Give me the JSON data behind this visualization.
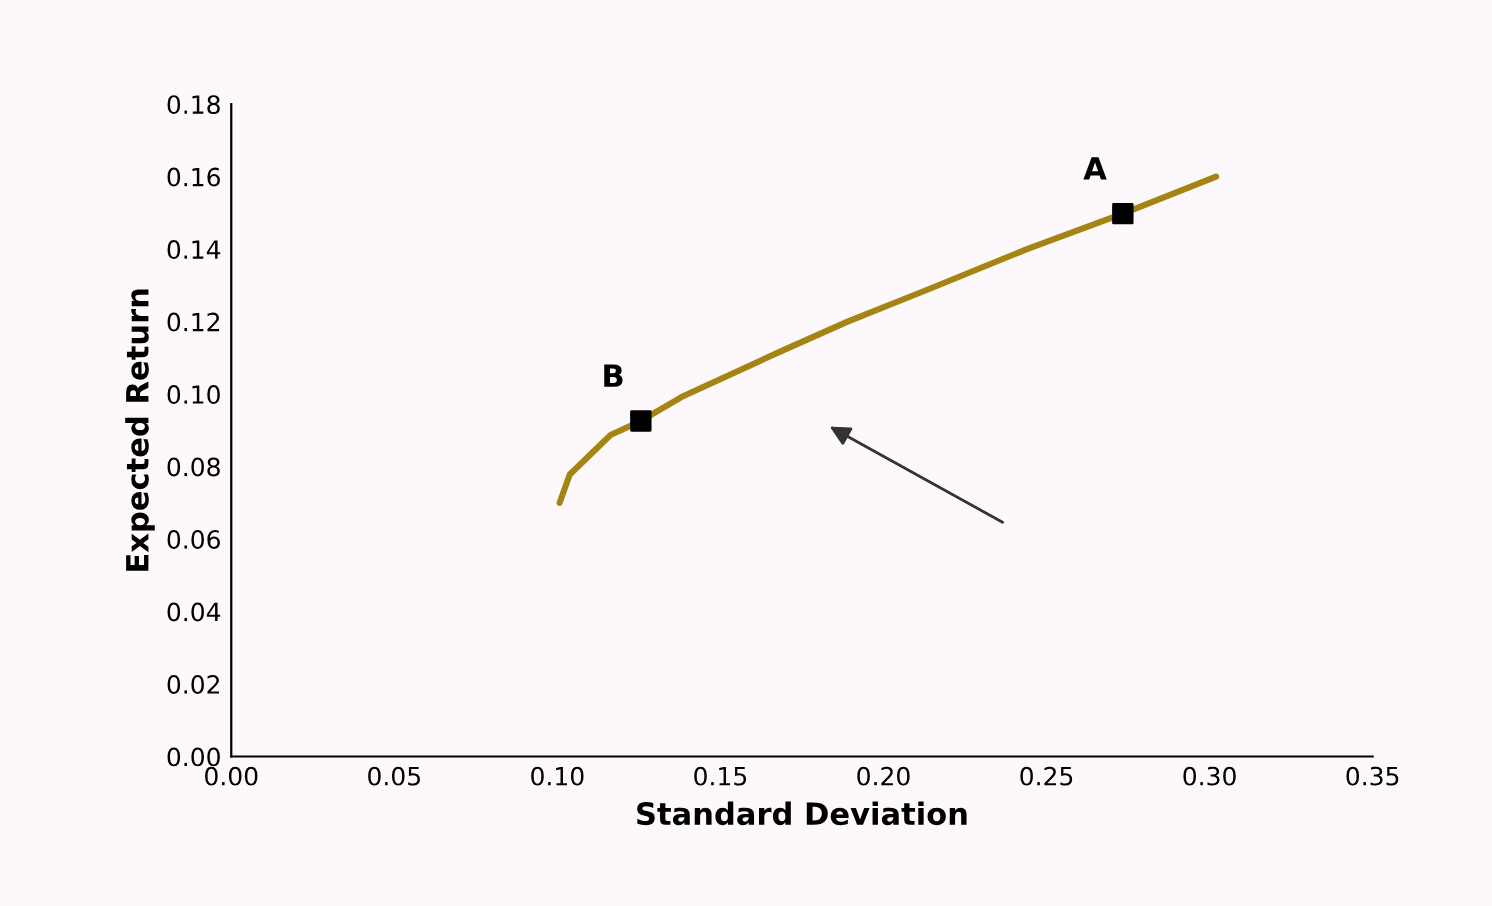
{
  "chart_data": {
    "type": "line",
    "xlabel": "Standard Deviation",
    "ylabel": "Expected Return",
    "series": [
      {
        "color": "#a68414",
        "x": [
          0.1007,
          0.1038,
          0.1163,
          0.1256,
          0.1387,
          0.169,
          0.189,
          0.214,
          0.244,
          0.2734,
          0.302
        ],
        "values": [
          0.07,
          0.0778,
          0.0887,
          0.0926,
          0.0995,
          0.112,
          0.12,
          0.129,
          0.14,
          0.1498,
          0.16
        ]
      },
      {
        "type": "scatter",
        "color": "#000000",
        "marker": "square",
        "x": [
          0.1256,
          0.2734
        ],
        "values": [
          0.0926,
          0.1498
        ]
      }
    ],
    "annotations": [
      {
        "text": "A",
        "x": 0.2734,
        "y": 0.1498
      },
      {
        "text": "B",
        "x": 0.1256,
        "y": 0.0926
      }
    ],
    "xlim": [
      0,
      0.35
    ],
    "xticks": [
      {
        "value": 0,
        "label": "0.00"
      },
      {
        "value": 0.05,
        "label": "0.05"
      },
      {
        "value": 0.1,
        "label": "0.10"
      },
      {
        "value": 0.15,
        "label": "0.15"
      },
      {
        "value": 0.2,
        "label": "0.20"
      },
      {
        "value": 0.25,
        "label": "0.25"
      },
      {
        "value": 0.3,
        "label": "0.30"
      },
      {
        "value": 0.35,
        "label": "0.35"
      }
    ],
    "ylim": [
      0,
      0.18
    ],
    "yticks": [
      {
        "value": 0,
        "label": "0.00"
      },
      {
        "value": 0.02,
        "label": "0.02"
      },
      {
        "value": 0.04,
        "label": "0.04"
      },
      {
        "value": 0.06,
        "label": "0.06"
      },
      {
        "value": 0.08,
        "label": "0.08"
      },
      {
        "value": 0.1,
        "label": "0.10"
      },
      {
        "value": 0.12,
        "label": "0.12"
      },
      {
        "value": 0.14,
        "label": "0.14"
      },
      {
        "value": 0.16,
        "label": "0.16"
      },
      {
        "value": 0.18,
        "label": "0.18"
      }
    ],
    "grid": false,
    "legend": false
  }
}
